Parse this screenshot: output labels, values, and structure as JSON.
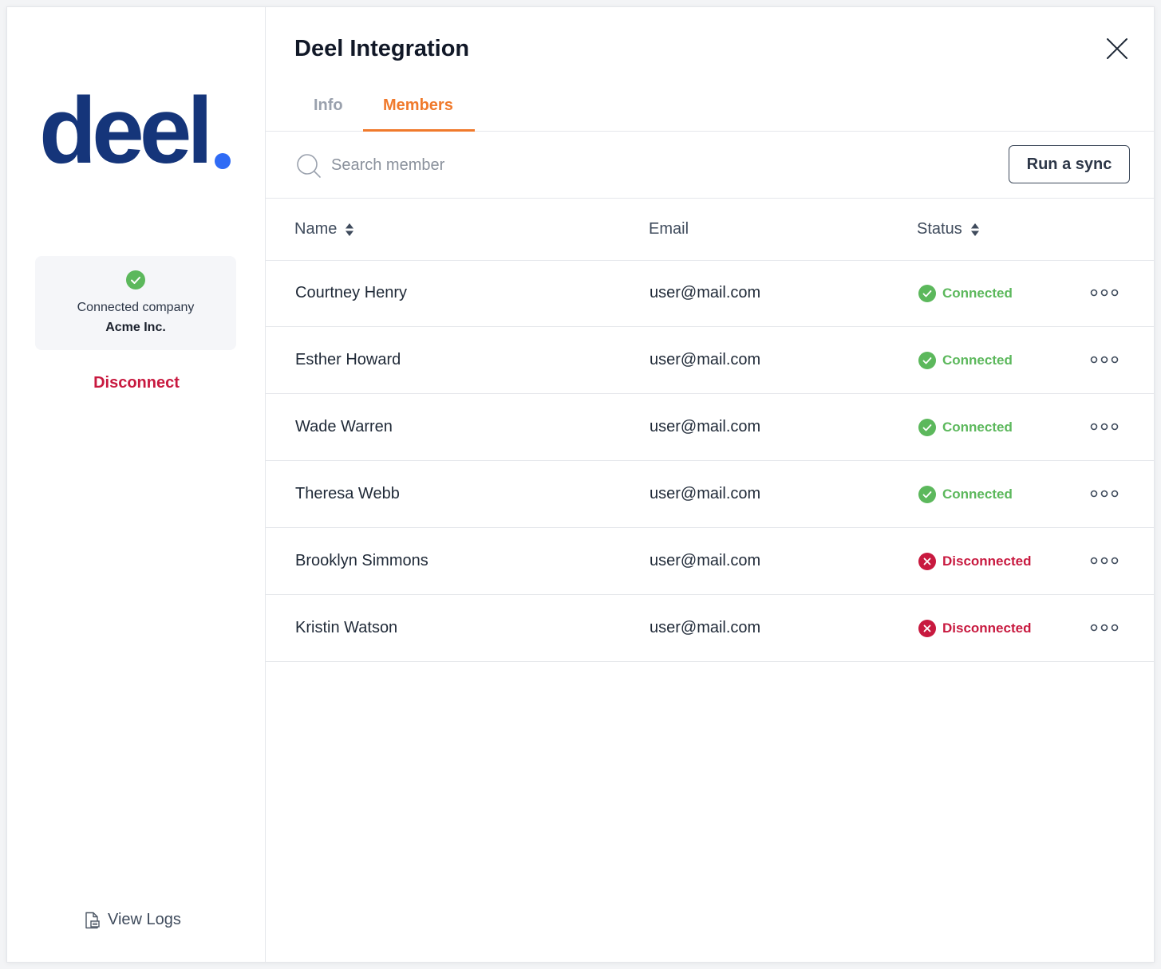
{
  "brand": {
    "logo_text": "deel",
    "logo_dot_color": "#2f6bf5"
  },
  "sidebar": {
    "connected_label": "Connected company",
    "company_name": "Acme Inc.",
    "disconnect_label": "Disconnect",
    "view_logs_label": "View Logs"
  },
  "header": {
    "title": "Deel Integration",
    "close_icon": "close-icon"
  },
  "tabs": [
    {
      "label": "Info",
      "active": false
    },
    {
      "label": "Members",
      "active": true
    }
  ],
  "toolbar": {
    "search_placeholder": "Search member",
    "search_value": "",
    "sync_label": "Run a sync"
  },
  "table": {
    "columns": {
      "name": "Name",
      "email": "Email",
      "status": "Status"
    },
    "rows": [
      {
        "name": "Courtney Henry",
        "email": "user@mail.com",
        "status": "Connected",
        "state": "connected"
      },
      {
        "name": "Esther Howard",
        "email": "user@mail.com",
        "status": "Connected",
        "state": "connected"
      },
      {
        "name": "Wade Warren",
        "email": "user@mail.com",
        "status": "Connected",
        "state": "connected"
      },
      {
        "name": "Theresa Webb",
        "email": "user@mail.com",
        "status": "Connected",
        "state": "connected"
      },
      {
        "name": "Brooklyn Simmons",
        "email": "user@mail.com",
        "status": "Disconnected",
        "state": "disconnected"
      },
      {
        "name": "Kristin Watson",
        "email": "user@mail.com",
        "status": "Disconnected",
        "state": "disconnected"
      }
    ]
  },
  "colors": {
    "accent": "#f07a2c",
    "connected": "#5cb85c",
    "disconnected": "#c8193f",
    "brand_navy": "#15357a"
  }
}
